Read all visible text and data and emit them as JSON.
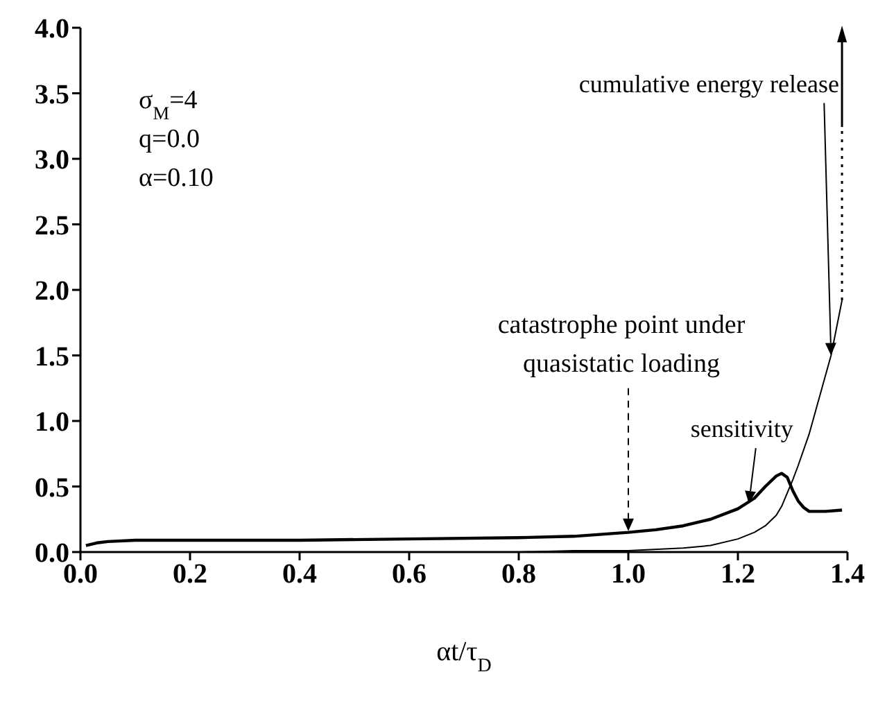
{
  "chart_data": {
    "type": "line",
    "xlabel": "αt/τ$_{D}$",
    "xlim": [
      0,
      1.4
    ],
    "xticks": [
      {
        "value": 0,
        "label": "0.0"
      },
      0.2,
      0.4,
      0.6,
      0.8,
      {
        "value": 1,
        "label": "1.0"
      },
      1.2,
      1.4
    ],
    "ylim": [
      0,
      4
    ],
    "yticks": [
      {
        "value": 0,
        "label": "0.0"
      },
      0.5,
      {
        "value": 1,
        "label": "1.0"
      },
      1.5,
      {
        "value": 2,
        "label": "2.0"
      },
      2.5,
      {
        "value": 3,
        "label": "3.0"
      },
      3.5,
      {
        "value": 4,
        "label": "4.0"
      }
    ],
    "grid": false,
    "legend": false,
    "marker": "none",
    "line_style": "solid",
    "series": [
      {
        "color": "#000000",
        "x": [
          0.01,
          0.03,
          0.05,
          0.1,
          0.2,
          0.4,
          0.6,
          0.8,
          0.9,
          1.0,
          1.05,
          1.1,
          1.15,
          1.2,
          1.23,
          1.25,
          1.27,
          1.28,
          1.29,
          1.3,
          1.31,
          1.32,
          1.33,
          1.34,
          1.36,
          1.39
        ],
        "values": [
          0.05,
          0.07,
          0.08,
          0.09,
          0.09,
          0.09,
          0.1,
          0.11,
          0.12,
          0.15,
          0.17,
          0.2,
          0.25,
          0.33,
          0.41,
          0.5,
          0.58,
          0.6,
          0.57,
          0.47,
          0.39,
          0.34,
          0.31,
          0.31,
          0.31,
          0.32
        ]
      },
      {
        "color": "#000000",
        "x": [
          0.01,
          0.6,
          0.8,
          0.9,
          1.0,
          1.1,
          1.15,
          1.2,
          1.23,
          1.25,
          1.27,
          1.28,
          1.3,
          1.31,
          1.33,
          1.35,
          1.37,
          1.39
        ],
        "values": [
          0,
          0,
          0,
          0.01,
          0.01,
          0.03,
          0.05,
          0.1,
          0.15,
          0.2,
          0.28,
          0.35,
          0.55,
          0.66,
          0.9,
          1.2,
          1.5,
          1.92
        ]
      }
    ],
    "annotations": [
      "σ$_{M}$=4",
      "q=0.0",
      "α=0.10",
      {
        "text": "catastrophe point under quasistatic loading",
        "x": 1.0,
        "y": 0.16
      },
      {
        "text": "sensitivity",
        "x": 1.22,
        "y": 0.37
      },
      {
        "text": "cumulative energy release",
        "x": 1.37,
        "y": 1.5
      }
    ]
  }
}
